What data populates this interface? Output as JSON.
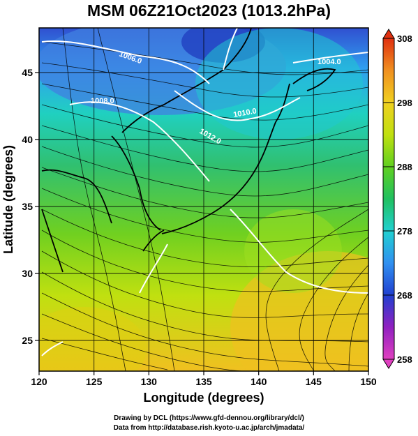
{
  "title": "MSM 06Z21Oct2023 (1013.2hPa)",
  "x_axis": {
    "label": "Longitude (degrees)",
    "ticks": [
      "120",
      "125",
      "130",
      "135",
      "140",
      "145",
      "150"
    ]
  },
  "y_axis": {
    "label": "Latitude  (degrees)",
    "ticks": [
      "25",
      "30",
      "35",
      "40",
      "45"
    ]
  },
  "colorbar": {
    "ticks": [
      "308",
      "298",
      "288",
      "278",
      "268",
      "258"
    ],
    "min": 258,
    "max": 308,
    "colors": [
      "#e040c0",
      "#9020c0",
      "#2040d0",
      "#3090f0",
      "#20d0d0",
      "#20c060",
      "#60d020",
      "#c0e010",
      "#f0d020",
      "#f09020",
      "#e03010"
    ]
  },
  "contour_labels": [
    "1006.0",
    "1008.0",
    "1010.0",
    "1012.0",
    "1004.0"
  ],
  "credits": {
    "line1": "Drawing by DCL (https://www.gfd-dennou.org/library/dcl/)",
    "line2": "Data from http://database.rish.kyoto-u.ac.jp/arch/jmadata/"
  },
  "extent": {
    "lon": [
      120,
      150
    ],
    "lat": [
      22.4,
      48
    ]
  }
}
